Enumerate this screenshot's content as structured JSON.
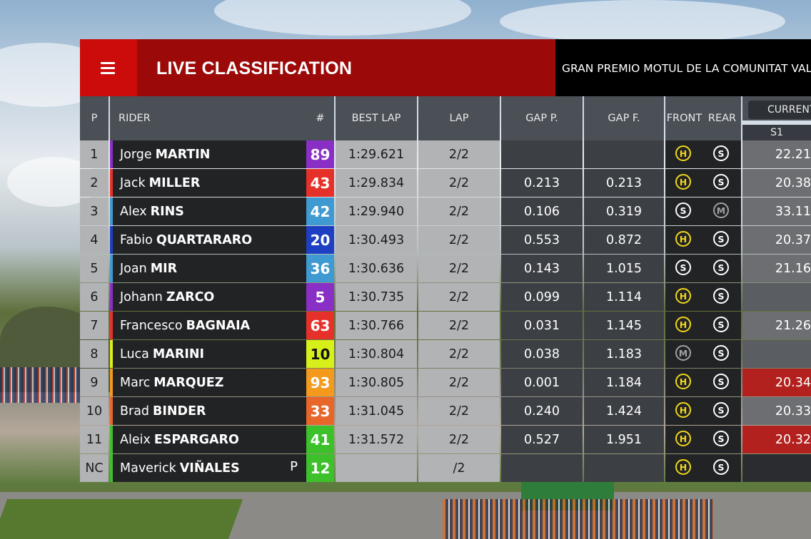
{
  "header": {
    "title": "LIVE CLASSIFICATION",
    "event": "GRAN PREMIO MOTUL DE LA COMUNITAT VALENCIANA"
  },
  "columns": {
    "pos": "P",
    "rider": "RIDER",
    "number": "#",
    "best_lap": "BEST LAP",
    "lap": "LAP",
    "gap_prev": "GAP P.",
    "gap_first": "GAP F.",
    "front": "FRONT",
    "rear": "REAR",
    "current": "CURRENT",
    "s1": "S1"
  },
  "colors": {
    "menu_red": "#cc0b0b",
    "title_red": "#9b0909",
    "tyre_hard": "#f1d81a",
    "tyre_soft": "#ffffff",
    "tyre_medium": "#9fa1a3",
    "sector_best": "#b3211e"
  },
  "rows": [
    {
      "pos": "1",
      "first": "Jorge",
      "last": "MARTIN",
      "num": "89",
      "color": "#8a2fc6",
      "best": "1:29.621",
      "lap": "2/2",
      "gapp": "",
      "gapf": "",
      "front": "H",
      "rear": "S",
      "s1": "22.21",
      "s1_style": "normal",
      "pit": ""
    },
    {
      "pos": "2",
      "first": "Jack",
      "last": "MILLER",
      "num": "43",
      "color": "#e6312b",
      "best": "1:29.834",
      "lap": "2/2",
      "gapp": "0.213",
      "gapf": "0.213",
      "front": "H",
      "rear": "S",
      "s1": "20.38",
      "s1_style": "normal",
      "pit": ""
    },
    {
      "pos": "3",
      "first": "Alex",
      "last": "RINS",
      "num": "42",
      "color": "#3f9ad1",
      "best": "1:29.940",
      "lap": "2/2",
      "gapp": "0.106",
      "gapf": "0.319",
      "front": "S",
      "rear": "M",
      "s1": "33.11",
      "s1_style": "normal",
      "pit": ""
    },
    {
      "pos": "4",
      "first": "Fabio",
      "last": "QUARTARARO",
      "num": "20",
      "color": "#1d3fc3",
      "best": "1:30.493",
      "lap": "2/2",
      "gapp": "0.553",
      "gapf": "0.872",
      "front": "H",
      "rear": "S",
      "s1": "20.37",
      "s1_style": "normal",
      "pit": ""
    },
    {
      "pos": "5",
      "first": "Joan",
      "last": "MIR",
      "num": "36",
      "color": "#3f9ad1",
      "best": "1:30.636",
      "lap": "2/2",
      "gapp": "0.143",
      "gapf": "1.015",
      "front": "S",
      "rear": "S",
      "s1": "21.16",
      "s1_style": "normal",
      "pit": ""
    },
    {
      "pos": "6",
      "first": "Johann",
      "last": "ZARCO",
      "num": "5",
      "color": "#8a2fc6",
      "best": "1:30.735",
      "lap": "2/2",
      "gapp": "0.099",
      "gapf": "1.114",
      "front": "H",
      "rear": "S",
      "s1": "",
      "s1_style": "empty",
      "pit": ""
    },
    {
      "pos": "7",
      "first": "Francesco",
      "last": "BAGNAIA",
      "num": "63",
      "color": "#e6312b",
      "best": "1:30.766",
      "lap": "2/2",
      "gapp": "0.031",
      "gapf": "1.145",
      "front": "H",
      "rear": "S",
      "s1": "21.26",
      "s1_style": "normal",
      "pit": ""
    },
    {
      "pos": "8",
      "first": "Luca",
      "last": "MARINI",
      "num": "10",
      "color": "#d8f01a",
      "best": "1:30.804",
      "lap": "2/2",
      "gapp": "0.038",
      "gapf": "1.183",
      "front": "M",
      "rear": "S",
      "s1": "",
      "s1_style": "empty",
      "pit": ""
    },
    {
      "pos": "9",
      "first": "Marc",
      "last": "MARQUEZ",
      "num": "93",
      "color": "#f39a1d",
      "best": "1:30.805",
      "lap": "2/2",
      "gapp": "0.001",
      "gapf": "1.184",
      "front": "H",
      "rear": "S",
      "s1": "20.34",
      "s1_style": "red",
      "pit": ""
    },
    {
      "pos": "10",
      "first": "Brad",
      "last": "BINDER",
      "num": "33",
      "color": "#e8662a",
      "best": "1:31.045",
      "lap": "2/2",
      "gapp": "0.240",
      "gapf": "1.424",
      "front": "H",
      "rear": "S",
      "s1": "20.33",
      "s1_style": "normal",
      "pit": ""
    },
    {
      "pos": "11",
      "first": "Aleix",
      "last": "ESPARGARO",
      "num": "41",
      "color": "#3cc12b",
      "best": "1:31.572",
      "lap": "2/2",
      "gapp": "0.527",
      "gapf": "1.951",
      "front": "H",
      "rear": "S",
      "s1": "20.32",
      "s1_style": "red",
      "pit": ""
    },
    {
      "pos": "NC",
      "first": "Maverick",
      "last": "VIÑALES",
      "num": "12",
      "color": "#3cc12b",
      "best": "",
      "lap": "/2",
      "gapp": "",
      "gapf": "",
      "front": "H",
      "rear": "S",
      "s1": "",
      "s1_style": "dark",
      "pit": "P"
    }
  ]
}
